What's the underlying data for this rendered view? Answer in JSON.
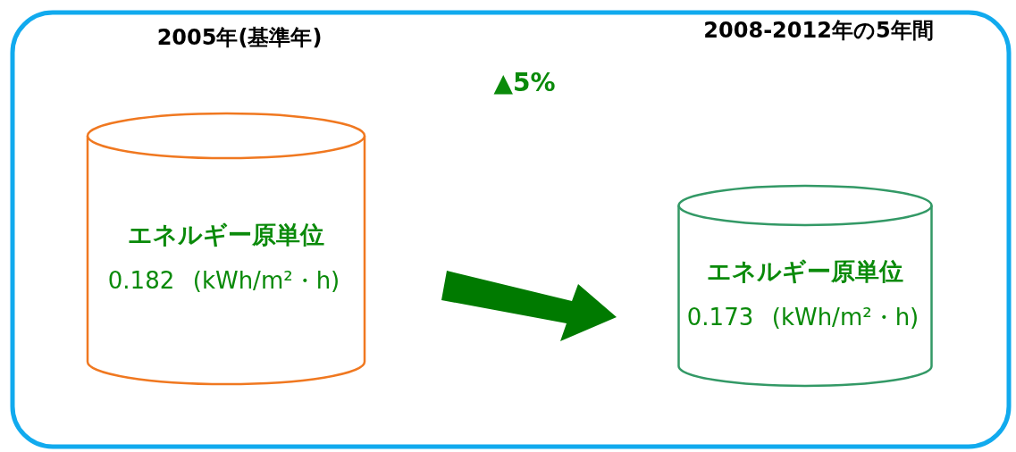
{
  "chart_data": {
    "type": "other",
    "categories": [
      "2005年(基準年)",
      "2008-2012年の5年間"
    ],
    "ylabel": "エネルギー原単位",
    "values": [
      0.182,
      0.173
    ],
    "data_labels": true,
    "colors": [
      "#f07820",
      "#339966"
    ],
    "annotations": [
      "▲5%",
      {
        "text": "(kWh/m²・h)",
        "x": "2005年(基準年)"
      },
      {
        "text": "(kWh/m²・h)",
        "x": "2008-2012年の5年間"
      }
    ]
  }
}
